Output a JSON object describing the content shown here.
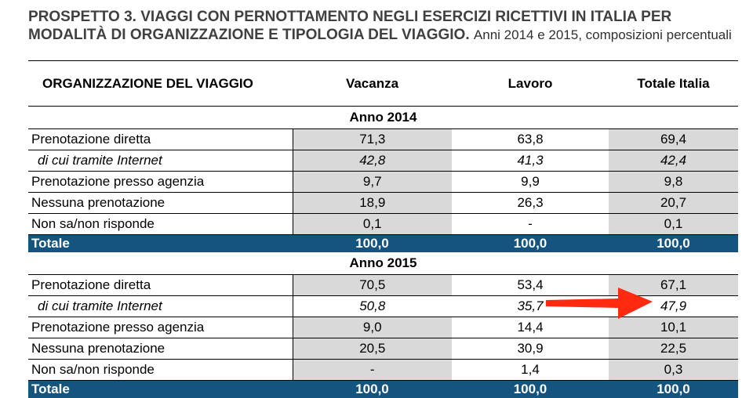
{
  "title": {
    "bold": "PROSPETTO 3. VIAGGI CON PERNOTTAMENTO NEGLI ESERCIZI RICETTIVI IN ITALIA PER MODALITÀ DI ORGANIZZAZIONE E TIPOLOGIA DEL VIAGGIO.",
    "rest": "Anni 2014 e 2015, composizioni percentuali"
  },
  "header": {
    "label": "ORGANIZZAZIONE DEL VIAGGIO",
    "col1": "Vacanza",
    "col2": "Lavoro",
    "col3": "Totale Italia"
  },
  "sections": [
    {
      "year": "Anno 2014",
      "rows": [
        {
          "label": "Prenotazione diretta",
          "v": "71,3",
          "l": "63,8",
          "t": "69,4"
        },
        {
          "label": "di cui tramite Internet",
          "v": "42,8",
          "l": "41,3",
          "t": "42,4"
        },
        {
          "label": "Prenotazione presso agenzia",
          "v": "9,7",
          "l": "9,9",
          "t": "9,8"
        },
        {
          "label": "Nessuna prenotazione",
          "v": "18,9",
          "l": "26,3",
          "t": "20,7"
        },
        {
          "label": "Non sa/non risponde",
          "v": "0,1",
          "l": "-",
          "t": "0,1"
        }
      ],
      "total": {
        "label": "Totale",
        "v": "100,0",
        "l": "100,0",
        "t": "100,0"
      }
    },
    {
      "year": "Anno 2015",
      "rows": [
        {
          "label": "Prenotazione diretta",
          "v": "70,5",
          "l": "53,4",
          "t": "67,1"
        },
        {
          "label": "di cui tramite Internet",
          "v": "50,8",
          "l": "35,7",
          "t": "47,9"
        },
        {
          "label": "Prenotazione presso agenzia",
          "v": "9,0",
          "l": "14,4",
          "t": "10,1"
        },
        {
          "label": "Nessuna prenotazione",
          "v": "20,5",
          "l": "30,9",
          "t": "22,5"
        },
        {
          "label": "Non sa/non risponde",
          "v": "-",
          "l": "1,4",
          "t": "0,3"
        }
      ],
      "total": {
        "label": "Totale",
        "v": "100,0",
        "l": "100,0",
        "t": "100,0"
      }
    }
  ],
  "colors": {
    "total_bg": "#15547f",
    "shade": "#d9d9d9",
    "arrow": "#ff2a0f"
  }
}
